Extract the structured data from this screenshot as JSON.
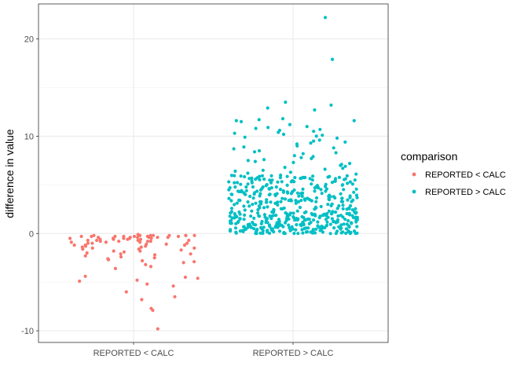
{
  "chart_data": {
    "type": "scatter",
    "title": "",
    "xlabel": "",
    "ylabel": "difference in value",
    "categories": [
      "REPORTED < CALC",
      "REPORTED > CALC"
    ],
    "ylim": [
      -11.2,
      23.6
    ],
    "yticks": [
      -10,
      0,
      10,
      20
    ],
    "grid": true,
    "legend_position": "right",
    "legend": {
      "title": "comparison",
      "entries": [
        {
          "label": "REPORTED < CALC",
          "color": "#F8766D"
        },
        {
          "label": "REPORTED > CALC",
          "color": "#00BFC4"
        }
      ]
    },
    "series": [
      {
        "name": "REPORTED < CALC",
        "category": "REPORTED < CALC",
        "color": "#F8766D",
        "count": 90,
        "values": [
          -0.1,
          -0.2,
          -0.3,
          -0.4,
          -0.2,
          -0.5,
          -0.6,
          -0.3,
          -0.8,
          -0.2,
          -1.0,
          -0.4,
          -0.7,
          -1.3,
          -0.3,
          -0.5,
          -1.6,
          -0.2,
          -0.9,
          -2.1,
          -0.6,
          -0.3,
          -1.1,
          -2.5,
          -0.4,
          -0.8,
          -1.4,
          -3.0,
          -0.2,
          -0.7,
          -1.8,
          -3.6,
          -0.5,
          -1.2,
          -2.3,
          -4.4,
          -0.9,
          -1.5,
          -4.6,
          -4.8,
          -4.9,
          -5.2,
          -5.4,
          -6.0,
          -6.5,
          -6.8,
          -7.7,
          -7.9,
          -9.8,
          -0.3,
          -0.6,
          -1.0,
          -1.7,
          -2.8,
          -0.2,
          -0.4,
          -1.2,
          -2.0,
          -3.2,
          -0.5,
          -0.8,
          -1.5,
          -2.4,
          -0.3,
          -0.7,
          -1.1,
          -1.9,
          -2.7,
          -0.4,
          -0.9,
          -1.3,
          -2.2,
          -0.2,
          -0.6,
          -1.6,
          -2.6,
          -4.5,
          -0.5,
          -1.0,
          -1.4,
          -0.3,
          -0.8,
          -1.8,
          -0.4,
          -2.9,
          -3.4,
          -0.2,
          -1.2,
          -2.1,
          -0.7
        ]
      },
      {
        "name": "REPORTED > CALC",
        "category": "REPORTED > CALC",
        "color": "#00BFC4",
        "count": 520,
        "distribution": {
          "min": 0.0,
          "max": 22.2,
          "dense_range": [
            0,
            6
          ],
          "sparse_range": [
            6,
            13.5
          ]
        },
        "notable_values": [
          22.2,
          17.9,
          13.5,
          13.2,
          12.9,
          12.7,
          11.8,
          11.7,
          11.6,
          11.6,
          11.5,
          11.2,
          11.0,
          10.9,
          10.8,
          10.7,
          10.6,
          10.5,
          10.4,
          10.3,
          10.2,
          10.1,
          10.0,
          9.9,
          9.8,
          9.6,
          9.5,
          9.4,
          9.3,
          9.2,
          9.0,
          8.9,
          8.8,
          8.7,
          8.5,
          8.4,
          8.3,
          8.2,
          8.0,
          7.9,
          7.8,
          7.7,
          7.6,
          7.5,
          7.4,
          7.3,
          7.2,
          7.1,
          7.0,
          6.9,
          6.8,
          6.7,
          6.6,
          6.5,
          6.4,
          6.3,
          6.2,
          6.1,
          6.0
        ]
      }
    ]
  }
}
